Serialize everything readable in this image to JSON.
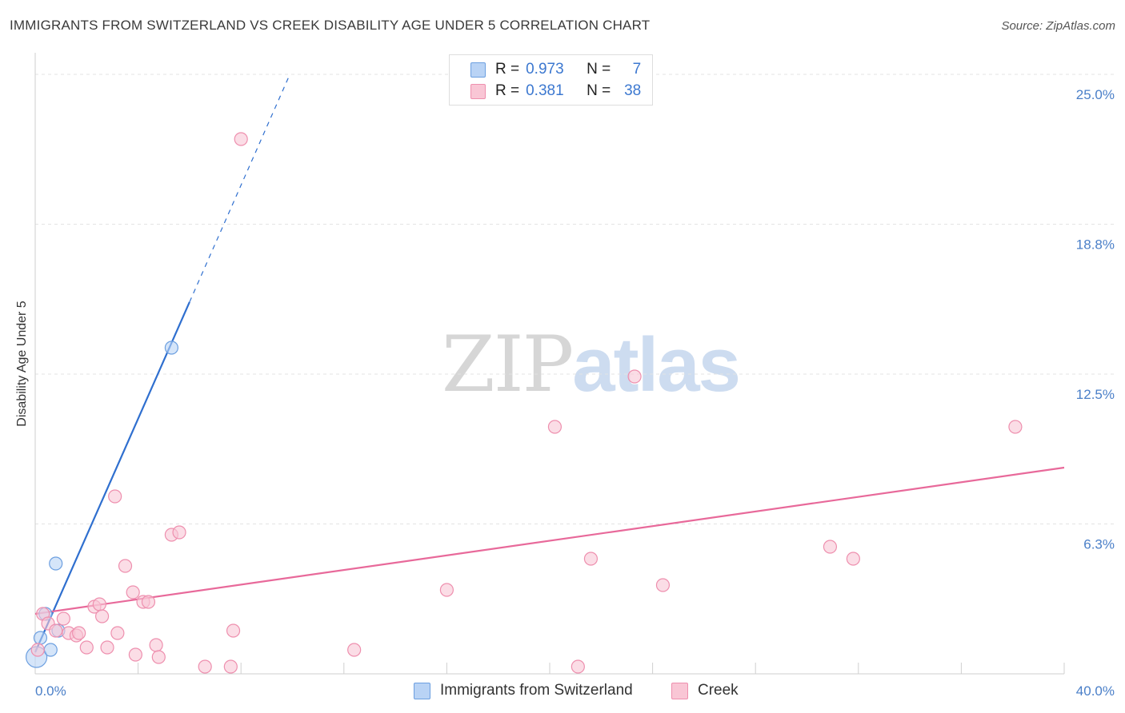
{
  "header": {
    "title": "IMMIGRANTS FROM SWITZERLAND VS CREEK DISABILITY AGE UNDER 5 CORRELATION CHART",
    "source": "Source: ZipAtlas.com"
  },
  "watermark": {
    "zip": "ZIP",
    "atlas": "atlas"
  },
  "legend": {
    "rows": [
      {
        "r_label": "R =",
        "r_value": "0.973",
        "n_label": "N =",
        "n_value": "7"
      },
      {
        "r_label": "R =",
        "r_value": "0.381",
        "n_label": "N =",
        "n_value": "38"
      }
    ],
    "series_names": [
      "Immigrants from Switzerland",
      "Creek"
    ]
  },
  "colors": {
    "blue_fill": "#b9d3f5",
    "blue_stroke": "#6c9fe0",
    "blue_line": "#2f6fcf",
    "pink_fill": "#f9c6d5",
    "pink_stroke": "#ee8fae",
    "pink_line": "#e8699a",
    "grid": "#e3e3e3",
    "tick_label": "#4a7fc8"
  },
  "chart_data": {
    "type": "scatter",
    "title": "IMMIGRANTS FROM SWITZERLAND VS CREEK DISABILITY AGE UNDER 5 CORRELATION CHART",
    "xlabel": "",
    "ylabel": "Disability Age Under 5",
    "xlim": [
      0,
      40
    ],
    "ylim": [
      0,
      25.5
    ],
    "x_tick_labels": [
      "0.0%",
      "40.0%"
    ],
    "y_ticks": [
      6.25,
      12.5,
      18.75,
      25.0
    ],
    "y_tick_labels": [
      "6.3%",
      "12.5%",
      "18.8%",
      "25.0%"
    ],
    "grid": true,
    "legend_position": "top-center",
    "series": [
      {
        "name": "Immigrants from Switzerland",
        "color": "blue",
        "r": 0.973,
        "n": 7,
        "points": [
          {
            "x": 0.05,
            "y": 0.7,
            "size": "large"
          },
          {
            "x": 0.2,
            "y": 1.5
          },
          {
            "x": 0.4,
            "y": 2.5
          },
          {
            "x": 0.6,
            "y": 1.0
          },
          {
            "x": 0.8,
            "y": 4.6
          },
          {
            "x": 0.9,
            "y": 1.8
          },
          {
            "x": 5.3,
            "y": 13.6
          }
        ],
        "trend": {
          "x0": 0.0,
          "y0": 0.9,
          "x_solid_end": 6.0,
          "x1": 9.9,
          "y1": 25.0
        }
      },
      {
        "name": "Creek",
        "color": "pink",
        "r": 0.381,
        "n": 38,
        "points": [
          {
            "x": 0.1,
            "y": 1.0
          },
          {
            "x": 0.3,
            "y": 2.5
          },
          {
            "x": 0.5,
            "y": 2.1
          },
          {
            "x": 0.8,
            "y": 1.8
          },
          {
            "x": 1.1,
            "y": 2.3
          },
          {
            "x": 1.3,
            "y": 1.7
          },
          {
            "x": 1.6,
            "y": 1.6
          },
          {
            "x": 1.7,
            "y": 1.7
          },
          {
            "x": 2.0,
            "y": 1.1
          },
          {
            "x": 2.3,
            "y": 2.8
          },
          {
            "x": 2.5,
            "y": 2.9
          },
          {
            "x": 2.6,
            "y": 2.4
          },
          {
            "x": 2.8,
            "y": 1.1
          },
          {
            "x": 3.1,
            "y": 7.4
          },
          {
            "x": 3.2,
            "y": 1.7
          },
          {
            "x": 3.5,
            "y": 4.5
          },
          {
            "x": 3.8,
            "y": 3.4
          },
          {
            "x": 3.9,
            "y": 0.8
          },
          {
            "x": 4.2,
            "y": 3.0
          },
          {
            "x": 4.4,
            "y": 3.0
          },
          {
            "x": 4.7,
            "y": 1.2
          },
          {
            "x": 4.8,
            "y": 0.7
          },
          {
            "x": 5.3,
            "y": 5.8
          },
          {
            "x": 5.6,
            "y": 5.9
          },
          {
            "x": 6.6,
            "y": 0.3
          },
          {
            "x": 7.6,
            "y": 0.3
          },
          {
            "x": 7.7,
            "y": 1.8
          },
          {
            "x": 8.0,
            "y": 22.3
          },
          {
            "x": 12.4,
            "y": 1.0
          },
          {
            "x": 16.0,
            "y": 3.5
          },
          {
            "x": 20.2,
            "y": 10.3
          },
          {
            "x": 21.1,
            "y": 0.3
          },
          {
            "x": 21.6,
            "y": 4.8
          },
          {
            "x": 23.3,
            "y": 12.4
          },
          {
            "x": 24.4,
            "y": 3.7
          },
          {
            "x": 30.9,
            "y": 5.3
          },
          {
            "x": 31.8,
            "y": 4.8
          },
          {
            "x": 38.1,
            "y": 10.3
          }
        ],
        "trend": {
          "x0": 0.0,
          "y0": 2.5,
          "x1": 40.0,
          "y1": 8.6
        }
      }
    ]
  }
}
